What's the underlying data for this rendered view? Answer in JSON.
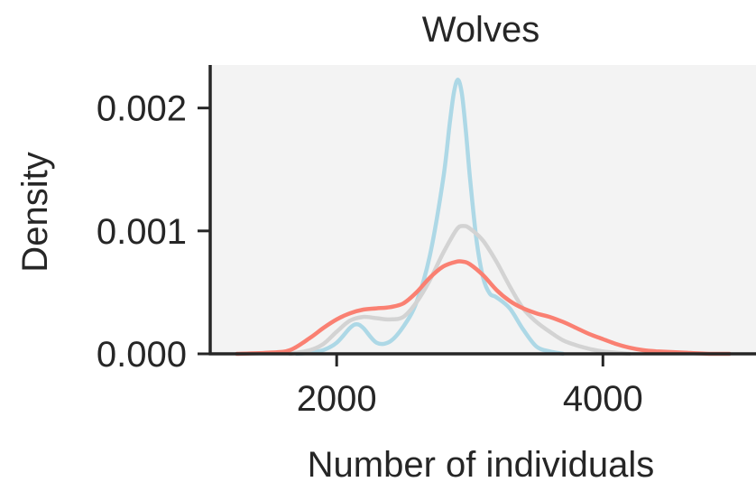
{
  "chart_data": {
    "type": "line",
    "title": "Wolves",
    "xlabel": "Number of individuals",
    "ylabel": "Density",
    "xlim": [
      1050,
      5150
    ],
    "ylim": [
      0,
      0.00235
    ],
    "x_ticks": [
      2000,
      4000
    ],
    "x_tick_labels": [
      "2000",
      "4000"
    ],
    "y_ticks": [
      0,
      0.001,
      0.002
    ],
    "y_tick_labels": [
      "0.000",
      "0.001",
      "0.002"
    ],
    "grid": false,
    "plot_background": "#f3f3f3",
    "series": [
      {
        "color": "#add8e6",
        "x": [
          1700,
          1800,
          1900,
          2000,
          2100,
          2150,
          2200,
          2300,
          2400,
          2500,
          2600,
          2700,
          2800,
          2850,
          2880,
          2910,
          2940,
          2970,
          3000,
          3050,
          3100,
          3150,
          3200,
          3300,
          3400,
          3500,
          3600,
          3700
        ],
        "y": [
          0,
          1e-05,
          3e-05,
          9e-05,
          0.00021,
          0.00024,
          0.00021,
          9e-05,
          0.0001,
          0.00022,
          0.00042,
          0.0008,
          0.00142,
          0.00188,
          0.00212,
          0.00223,
          0.00212,
          0.00182,
          0.00145,
          0.00093,
          0.00062,
          0.00049,
          0.00046,
          0.00037,
          0.0002,
          6e-05,
          2e-05,
          0
        ]
      },
      {
        "color": "#d3d3d3",
        "x": [
          1650,
          1800,
          1900,
          2000,
          2100,
          2200,
          2300,
          2400,
          2500,
          2600,
          2700,
          2800,
          2900,
          2950,
          3000,
          3100,
          3200,
          3300,
          3400,
          3500,
          3600,
          3700,
          3800,
          3900,
          4000,
          4200
        ],
        "y": [
          0,
          3e-05,
          8e-05,
          0.00018,
          0.00027,
          0.0003,
          0.00029,
          0.00028,
          0.0003,
          0.00042,
          0.0006,
          0.00082,
          0.00101,
          0.00104,
          0.00102,
          0.00092,
          0.00075,
          0.00055,
          0.00037,
          0.00026,
          0.00018,
          0.00011,
          7e-05,
          4e-05,
          2e-05,
          0
        ]
      },
      {
        "color": "#fa8072",
        "x": [
          1250,
          1500,
          1650,
          1800,
          1900,
          2000,
          2100,
          2200,
          2300,
          2400,
          2500,
          2600,
          2700,
          2800,
          2900,
          2950,
          3000,
          3100,
          3200,
          3300,
          3400,
          3500,
          3600,
          3700,
          3800,
          3900,
          4000,
          4100,
          4200,
          4300,
          4400,
          4600,
          4800,
          4950
        ],
        "y": [
          0,
          1e-05,
          3e-05,
          0.00013,
          0.00021,
          0.00028,
          0.00033,
          0.00036,
          0.00037,
          0.00038,
          0.00041,
          0.0005,
          0.00062,
          0.00071,
          0.00075,
          0.00075,
          0.00073,
          0.00064,
          0.00052,
          0.00043,
          0.00037,
          0.00033,
          0.0003,
          0.00026,
          0.00021,
          0.00016,
          0.00012,
          8e-05,
          5e-05,
          3e-05,
          2e-05,
          1e-05,
          0,
          0
        ]
      }
    ]
  }
}
